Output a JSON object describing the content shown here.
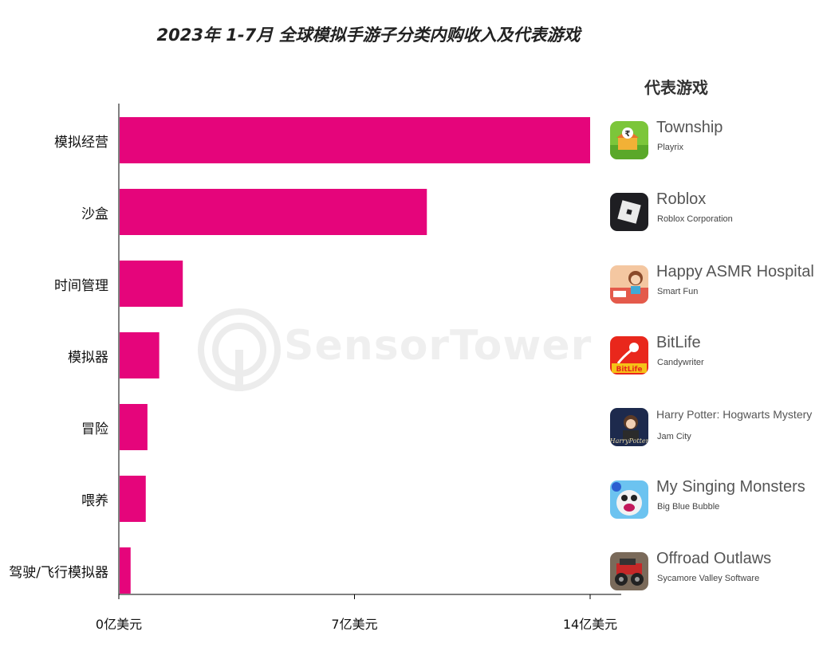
{
  "title": "2023年 1-7月 全球模拟手游子分类内购收入及代表游戏",
  "games_header": "代表游戏",
  "watermark": "SensorTower",
  "colors": {
    "bar": "#e5057b",
    "axis": "#000000"
  },
  "chart_data": {
    "type": "bar",
    "orientation": "horizontal",
    "categories": [
      "模拟经营",
      "沙盒",
      "时间管理",
      "模拟器",
      "冒险",
      "喂养",
      "驾驶/飞行模拟器"
    ],
    "values": [
      14.0,
      9.15,
      1.9,
      1.2,
      0.85,
      0.8,
      0.35
    ],
    "xlim": [
      0,
      14
    ],
    "ticks": [
      0,
      7,
      14
    ],
    "tick_labels": [
      "0亿美元",
      "7亿美元",
      "14亿美元"
    ],
    "grid": false
  },
  "games": [
    {
      "name": "Township",
      "developer": "Playrix",
      "icon": "township-icon"
    },
    {
      "name": "Roblox",
      "developer": "Roblox Corporation",
      "icon": "roblox-icon"
    },
    {
      "name": "Happy ASMR Hospital",
      "developer": "Smart Fun",
      "icon": "happy-asmr-hospital-icon"
    },
    {
      "name": "BitLife",
      "developer": "Candywriter",
      "icon": "bitlife-icon"
    },
    {
      "name": "Harry Potter: Hogwarts Mystery",
      "developer": "Jam City",
      "icon": "harry-potter-icon"
    },
    {
      "name": "My Singing Monsters",
      "developer": "Big Blue Bubble",
      "icon": "my-singing-monsters-icon"
    },
    {
      "name": "Offroad Outlaws",
      "developer": "Sycamore Valley Software",
      "icon": "offroad-outlaws-icon"
    }
  ]
}
